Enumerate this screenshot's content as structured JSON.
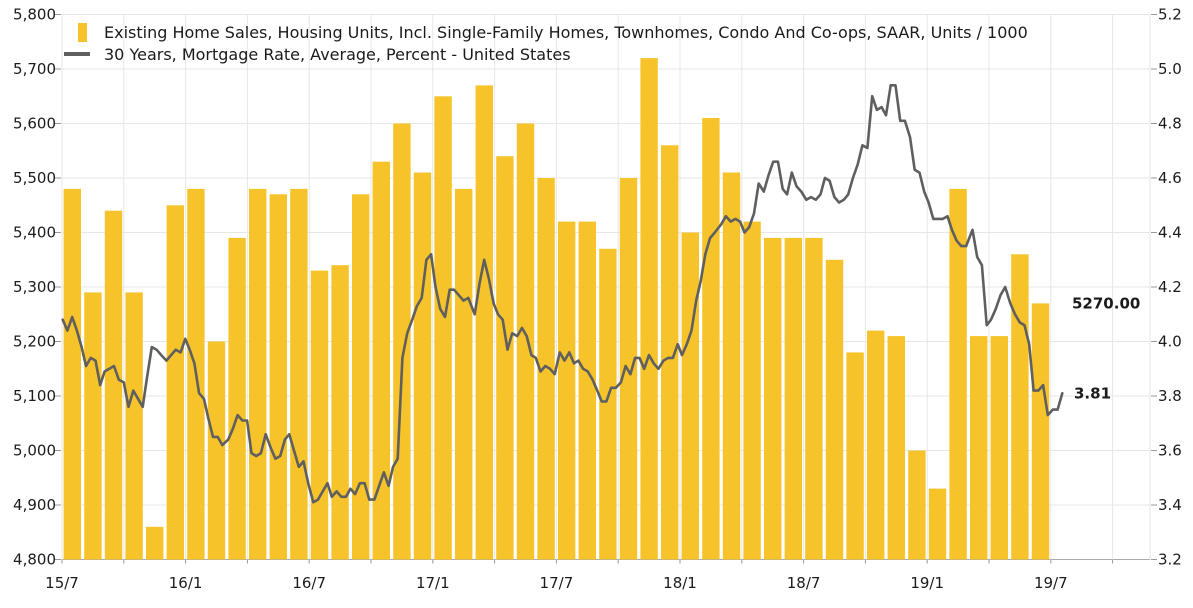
{
  "chart_data": {
    "type": "bar+line",
    "title": "",
    "legend_position": "top-left",
    "grid": "horizontal every 100 units / 0.2 pct, vertical quarterly",
    "colors": {
      "bar": "#F6C42A",
      "line": "#5F5F5F",
      "bar_label": "#EFBB18",
      "line_label": "#5F5F5F",
      "grid": "#E7E7E7",
      "axis_line": "#ABABAB",
      "tick": "#999999",
      "text": "#1B1B1B",
      "background": "#FFFFFF"
    },
    "x_axis": {
      "tick_labels": [
        "15/7",
        "16/1",
        "16/7",
        "17/1",
        "17/7",
        "18/1",
        "18/7",
        "19/1",
        "19/7"
      ],
      "tick_month_indices": [
        0,
        6,
        12,
        18,
        24,
        30,
        36,
        42,
        48
      ]
    },
    "left_axis": {
      "max": 5800,
      "min": 4800,
      "tick_labels": [
        "5,800",
        "5,700",
        "5,600",
        "5,500",
        "5,400",
        "5,300",
        "5,200",
        "5,100",
        "5,000",
        "4,900",
        "4,800"
      ]
    },
    "right_axis": {
      "max": 5.2,
      "min": 3.2,
      "tick_labels": [
        "5.2",
        "5.0",
        "4.8",
        "4.6",
        "4.4",
        "4.2",
        "4.0",
        "3.8",
        "3.6",
        "3.4",
        "3.2"
      ]
    },
    "bars": {
      "name": "Existing Home Sales, Housing Units, Incl. Single-Family Homes, Townhomes, Condo And Co-ops, SAAR, Units  / 1000",
      "start_month": "2015-07",
      "end_label": "5270.00",
      "monthly_values": [
        5480,
        5290,
        5440,
        5290,
        4860,
        5450,
        5480,
        5200,
        5390,
        5480,
        5470,
        5480,
        5330,
        5340,
        5470,
        5530,
        5600,
        5510,
        5650,
        5480,
        5670,
        5540,
        5600,
        5500,
        5420,
        5420,
        5370,
        5500,
        5720,
        5560,
        5400,
        5610,
        5510,
        5420,
        5390,
        5390,
        5390,
        5350,
        5180,
        5220,
        5210,
        5000,
        4930,
        5480,
        5210,
        5210,
        5360,
        5270
      ]
    },
    "line": {
      "name": "30 Years, Mortgage Rate, Average, Percent - United States",
      "start_date": "2015-07-02",
      "interval_days": 7,
      "end_label": "3.81",
      "weekly_values": [
        4.08,
        4.04,
        4.09,
        4.04,
        3.98,
        3.91,
        3.94,
        3.93,
        3.84,
        3.89,
        3.9,
        3.91,
        3.86,
        3.85,
        3.76,
        3.82,
        3.79,
        3.76,
        3.87,
        3.98,
        3.97,
        3.95,
        3.93,
        3.95,
        3.97,
        3.96,
        4.01,
        3.97,
        3.92,
        3.81,
        3.79,
        3.72,
        3.65,
        3.65,
        3.62,
        3.64,
        3.68,
        3.73,
        3.71,
        3.71,
        3.59,
        3.58,
        3.59,
        3.66,
        3.61,
        3.57,
        3.58,
        3.64,
        3.66,
        3.6,
        3.54,
        3.56,
        3.48,
        3.41,
        3.42,
        3.45,
        3.48,
        3.43,
        3.45,
        3.43,
        3.43,
        3.46,
        3.44,
        3.48,
        3.48,
        3.42,
        3.42,
        3.47,
        3.52,
        3.47,
        3.54,
        3.57,
        3.94,
        4.03,
        4.08,
        4.13,
        4.16,
        4.3,
        4.32,
        4.2,
        4.12,
        4.09,
        4.19,
        4.19,
        4.17,
        4.15,
        4.16,
        4.1,
        4.21,
        4.3,
        4.23,
        4.14,
        4.1,
        4.08,
        3.97,
        4.03,
        4.02,
        4.05,
        4.02,
        3.95,
        3.94,
        3.89,
        3.91,
        3.9,
        3.88,
        3.96,
        3.93,
        3.96,
        3.92,
        3.93,
        3.9,
        3.89,
        3.86,
        3.82,
        3.78,
        3.78,
        3.83,
        3.83,
        3.85,
        3.91,
        3.88,
        3.94,
        3.94,
        3.9,
        3.95,
        3.92,
        3.9,
        3.93,
        3.94,
        3.94,
        3.99,
        3.95,
        3.99,
        4.04,
        4.15,
        4.22,
        4.32,
        4.38,
        4.4,
        4.43,
        4.46,
        4.44,
        4.45,
        4.44,
        4.4,
        4.42,
        4.47,
        4.58,
        4.55,
        4.61,
        4.66,
        4.66,
        4.56,
        4.54,
        4.62,
        4.57,
        4.55,
        4.52,
        4.53,
        4.52,
        4.54,
        4.6,
        4.59,
        4.53,
        4.51,
        4.52,
        4.54,
        4.6,
        4.65,
        4.72,
        4.71,
        4.9,
        4.85,
        4.86,
        4.83,
        4.94,
        4.94,
        4.81,
        4.81,
        4.75,
        4.63,
        4.62,
        4.55,
        4.51,
        4.45,
        4.45,
        4.45,
        4.46,
        4.41,
        4.37,
        4.35,
        4.35,
        4.41,
        4.31,
        4.28,
        4.06,
        4.08,
        4.12,
        4.17,
        4.2,
        4.14,
        4.1,
        4.07,
        4.06,
        3.99,
        3.82,
        3.82,
        3.84,
        3.73,
        3.75,
        3.75,
        3.81
      ]
    }
  }
}
